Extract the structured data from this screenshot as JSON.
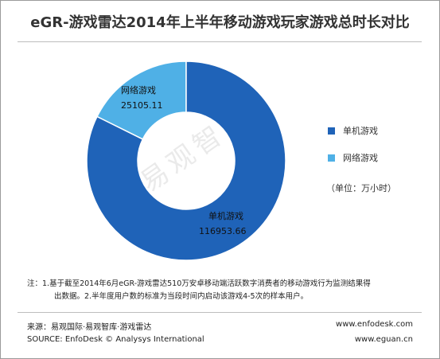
{
  "chart_data": {
    "type": "pie",
    "title": "eGR-游戏雷达2014年上半年移动游戏玩家游戏总时长对比",
    "unit": "（单位：万小时）",
    "categories": [
      "单机游戏",
      "网络游戏"
    ],
    "values": [
      116953.66,
      25105.11
    ],
    "value_labels": [
      "116953.66",
      "25105.11"
    ],
    "colors": [
      "#1f63b8",
      "#4fb0e6"
    ],
    "legend_position": "right",
    "donut": true
  },
  "watermark": "易观智库",
  "note": {
    "line1": "注：1.基于截至2014年6月eGR-游戏雷达510万安卓移动端活跃数字消费者的移动游戏行为监测结果得",
    "line2": "出数据。2.半年度用户数的标准为当段时间内启动该游戏4-5次的样本用户。"
  },
  "footer": {
    "source_cn": "来源：易观国际·易观智库·游戏雷达",
    "source_en": "SOURCE: EnfoDesk © Analysys International",
    "site1": "www.enfodesk.com",
    "site2": "www.eguan.cn"
  }
}
